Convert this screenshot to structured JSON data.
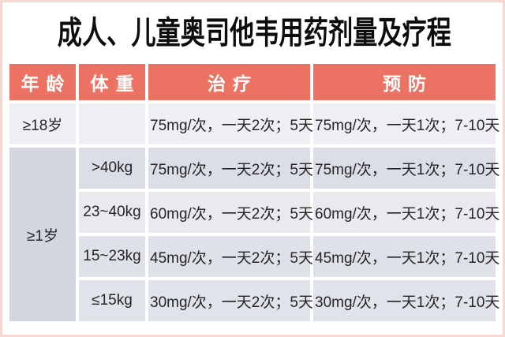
{
  "title": "成人、儿童奥司他韦用药剂量及疗程",
  "table": {
    "headers": [
      "年龄",
      "体重",
      "治疗",
      "预防"
    ],
    "rows": [
      {
        "age": "≥18岁",
        "weight": "",
        "treatment": "75mg/次，一天2次；5天",
        "prevention": "75mg/次，一天1次；7-10天"
      },
      {
        "age": "≥1岁",
        "weight": ">40kg",
        "treatment": "75mg/次，一天2次；5天",
        "prevention": "75mg/次，一天1次；7-10天"
      },
      {
        "weight": "23~40kg",
        "treatment": "60mg/次，一天2次；5天",
        "prevention": "60mg/次，一天1次；7-10天"
      },
      {
        "weight": "15~23kg",
        "treatment": "45mg/次，一天2次；5天",
        "prevention": "45mg/次，一天1次；7-10天"
      },
      {
        "weight": "≤15kg",
        "treatment": "30mg/次，一天2次；5天",
        "prevention": "30mg/次，一天1次；7-10天"
      }
    ]
  },
  "colors": {
    "header_bg": "#ec7263",
    "header_text": "#ffffff",
    "row_light": "#edeff3",
    "row_dark": "#dbdee6",
    "age_span_bg": "#d3d6df",
    "frame_border": "#f6d8d2",
    "title_text": "#0d0d0d",
    "body_text": "#252525"
  }
}
